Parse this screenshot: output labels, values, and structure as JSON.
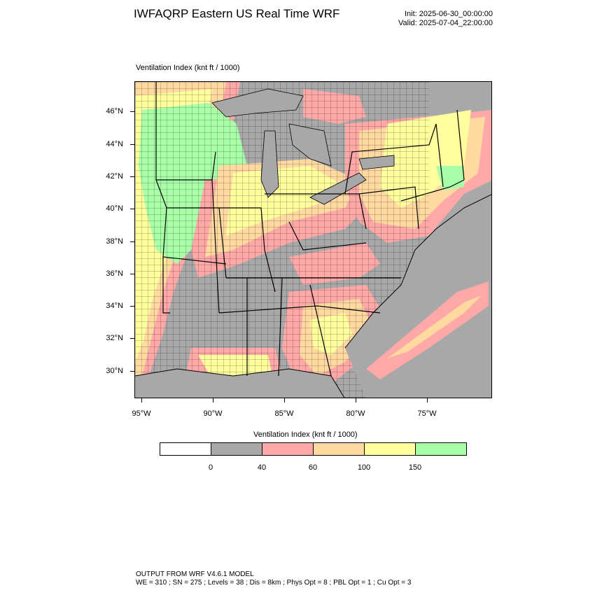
{
  "header": {
    "title": "IWFAQRP Eastern US Real Time WRF",
    "init": "Init: 2025-06-30_00:00:00",
    "valid": "Valid: 2025-07-04_22:00:00"
  },
  "map": {
    "field_title": "Ventilation Index   (knt ft / 1000)",
    "lat_labels": [
      "46°N",
      "44°N",
      "42°N",
      "40°N",
      "38°N",
      "36°N",
      "34°N",
      "32°N",
      "30°N"
    ],
    "lon_labels": [
      "95°W",
      "90°W",
      "85°W",
      "80°W",
      "75°W"
    ],
    "colors": {
      "c0": "#ffffff",
      "c1": "#a8a8a8",
      "c2": "#ffa8a8",
      "c3": "#ffd9a0",
      "c4": "#ffff9e",
      "c5": "#a8ffa8",
      "water": "#a8a8a8",
      "border": "#000000"
    }
  },
  "colorbar": {
    "title": "Ventilation Index  (knt ft / 1000)",
    "colors": [
      "#ffffff",
      "#a8a8a8",
      "#ffa8a8",
      "#ffd9a0",
      "#ffff9e",
      "#a8ffa8"
    ],
    "labels": [
      "0",
      "40",
      "60",
      "100",
      "150"
    ]
  },
  "footer": {
    "line1": "OUTPUT FROM WRF V4.6.1 MODEL",
    "line2": "WE = 310 ; SN = 275 ; Levels = 38 ; Dis = 8km ; Phys Opt = 8 ; PBL Opt = 1 ; Cu Opt = 3"
  }
}
